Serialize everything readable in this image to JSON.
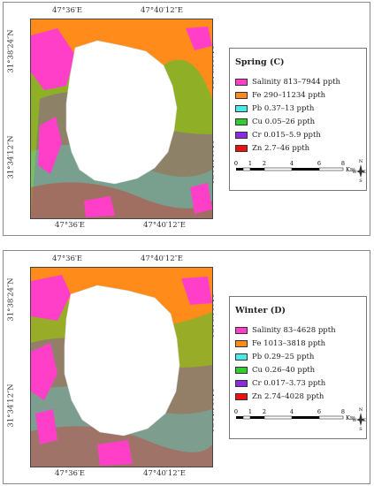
{
  "coords": {
    "top_left": "47°36′E",
    "top_right": "47°40′12″E",
    "bottom_left": "47°36′E",
    "bottom_right": "47°40′12″E",
    "left_upper": "31°38′24″N",
    "left_lower": "31°34′12″N",
    "right_upper": "31°38′24″N",
    "right_lower": "31°34′12″N"
  },
  "colors": {
    "salinity": "#ff3fc8",
    "fe": "#ff8c1a",
    "pb": "#4de8e8",
    "cu": "#33cc33",
    "cr": "#8a2be2",
    "zn": "#ee1111"
  },
  "panels": [
    {
      "title": "Spring (C)",
      "legend": [
        {
          "label": "Salinity 813–7944 ppth",
          "color": "#ff3fc8"
        },
        {
          "label": "Fe 290–11234 ppth",
          "color": "#ff8c1a"
        },
        {
          "label": "Pb 0.37–13 ppth",
          "color": "#4de8e8"
        },
        {
          "label": "Cu 0.05–26 ppth",
          "color": "#33cc33"
        },
        {
          "label": "Cr 0.015–5.9 ppth",
          "color": "#8a2be2"
        },
        {
          "label": "Zn 2.7–46 ppth",
          "color": "#ee1111"
        }
      ]
    },
    {
      "title": "Winter (D)",
      "legend": [
        {
          "label": "Salinity 83–4628 ppth",
          "color": "#ff3fc8"
        },
        {
          "label": "Fe 1013–3818 ppth",
          "color": "#ff8c1a"
        },
        {
          "label": "Pb 0.29–25 ppth",
          "color": "#4de8e8"
        },
        {
          "label": "Cu 0.26–40 ppth",
          "color": "#33cc33"
        },
        {
          "label": "Cr 0.017–3.73 ppth",
          "color": "#8a2be2"
        },
        {
          "label": "Zn 2.74–4028 ppth",
          "color": "#ee1111"
        }
      ]
    }
  ],
  "scale": {
    "ticks": [
      "0",
      "1",
      "2",
      "4",
      "6",
      "8"
    ],
    "unit": "Km",
    "compass": {
      "n": "N",
      "s": "S",
      "e": "E",
      "w": "W"
    }
  }
}
